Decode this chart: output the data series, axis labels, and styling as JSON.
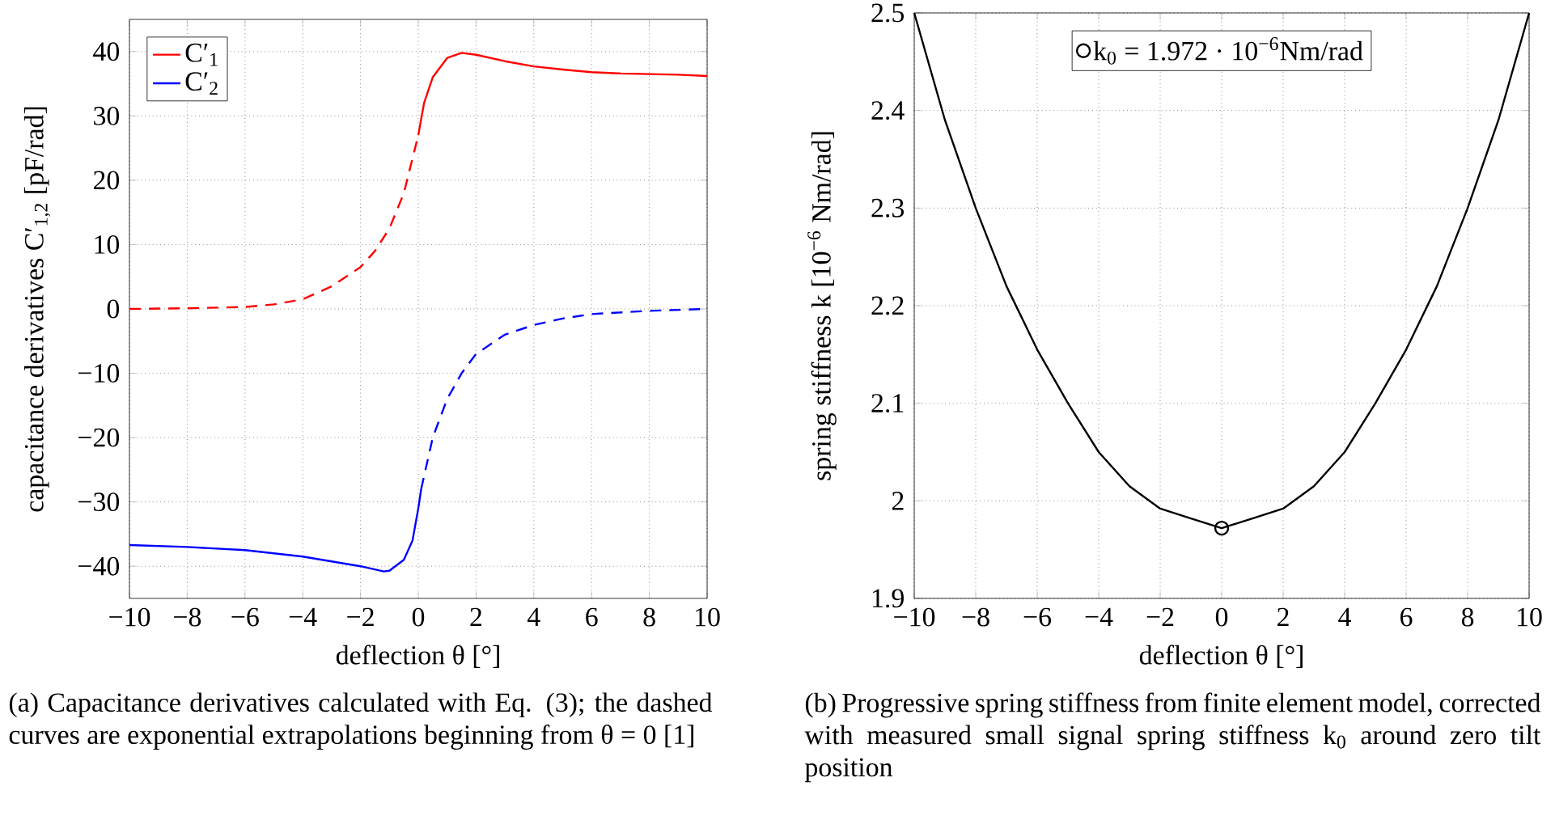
{
  "chart_data": [
    {
      "type": "line",
      "xlabel": "deflection θ [°]",
      "ylabel": "capacitance derivatives C′$_{1,2}$ [pF/rad]",
      "xlim": [
        -10,
        10
      ],
      "ylim": [
        -45,
        45
      ],
      "xticks": [
        {
          "value": -10,
          "label": "−10"
        },
        {
          "value": -8,
          "label": "−8"
        },
        {
          "value": -6,
          "label": "−6"
        },
        {
          "value": -4,
          "label": "−4"
        },
        {
          "value": -2,
          "label": "−2"
        },
        0,
        2,
        4,
        6,
        8,
        10
      ],
      "yticks": [
        {
          "value": -40,
          "label": "−40"
        },
        {
          "value": -30,
          "label": "−30"
        },
        {
          "value": -20,
          "label": "−20"
        },
        {
          "value": -10,
          "label": "−10"
        },
        0,
        10,
        20,
        30,
        40
      ],
      "grid": true,
      "legend": "top left",
      "series": [
        {
          "name": "C′$_{1}$",
          "color": "#ff0000",
          "line_style": "solid",
          "x": [
            0,
            0.2,
            0.5,
            1,
            1.5,
            2,
            3,
            4,
            5,
            6,
            7,
            8,
            9,
            10
          ],
          "values": [
            27,
            32,
            36,
            39,
            39.8,
            39.5,
            38.5,
            37.7,
            37.2,
            36.8,
            36.6,
            36.5,
            36.4,
            36.2
          ]
        },
        {
          "name": "C′$_{2}$",
          "color": "#0000ff",
          "line_style": "solid",
          "x": [
            -10,
            -8,
            -6,
            -4,
            -2,
            -1.2,
            -1,
            -0.5,
            -0.2,
            0,
            0.1
          ],
          "values": [
            -36.7,
            -37,
            -37.5,
            -38.5,
            -40,
            -40.8,
            -40.7,
            -39,
            -36,
            -31,
            -28
          ]
        },
        {
          "color": "#ff0000",
          "line_style": "dashed",
          "x": [
            -10,
            -8,
            -6,
            -5,
            -4,
            -3,
            -2,
            -1.5,
            -1,
            -0.5,
            0
          ],
          "values": [
            0,
            0.1,
            0.3,
            0.7,
            1.5,
            3.5,
            6.5,
            9,
            12.5,
            18,
            27
          ]
        },
        {
          "color": "#0000ff",
          "line_style": "dashed",
          "x": [
            0.1,
            0.5,
            1,
            1.5,
            2,
            3,
            4,
            5,
            6,
            8,
            10
          ],
          "values": [
            -28,
            -20,
            -14,
            -10,
            -7,
            -4,
            -2.5,
            -1.5,
            -0.8,
            -0.3,
            0
          ]
        }
      ],
      "annotations": [
        "(a) Capacitance derivatives calculated with Eq. (3); the dashed curves are exponential extrapolations beginning from θ = 0  [1]"
      ]
    },
    {
      "type": "line",
      "xlabel": "deflection θ [°]",
      "ylabel": "spring stiffness k [10$^{−6}$ Nm/rad]",
      "xlim": [
        -10,
        10
      ],
      "ylim": [
        1.9,
        2.5
      ],
      "xticks": [
        {
          "value": -10,
          "label": "−10"
        },
        {
          "value": -8,
          "label": "−8"
        },
        {
          "value": -6,
          "label": "−6"
        },
        {
          "value": -4,
          "label": "−4"
        },
        {
          "value": -2,
          "label": "−2"
        },
        0,
        2,
        4,
        6,
        8,
        10
      ],
      "yticks": [
        1.9,
        2,
        2.1,
        2.2,
        2.3,
        2.4,
        2.5
      ],
      "grid": true,
      "legend": "top",
      "series": [
        {
          "color": "#000000",
          "line_style": "solid",
          "x": [
            -10,
            -9,
            -8,
            -7,
            -6,
            -5,
            -4,
            -3,
            -2,
            -1,
            0,
            1,
            2,
            3,
            4,
            5,
            6,
            7,
            8,
            9,
            10
          ],
          "values": [
            2.5,
            2.39,
            2.3,
            2.22,
            2.155,
            2.1,
            2.05,
            2.015,
            1.992,
            1.982,
            1.972,
            1.982,
            1.992,
            2.015,
            2.05,
            2.1,
            2.155,
            2.22,
            2.3,
            2.39,
            2.5
          ]
        },
        {
          "type": "scatter",
          "name": "k$_{0}$ = 1.972 · 10$^{−6}$Nm/rad",
          "color": "#000000",
          "marker": "circle",
          "x": [
            0
          ],
          "values": [
            1.972
          ]
        }
      ],
      "annotations": [
        "(b) Progressive spring stiffness from finite element model, corrected with measured small signal spring stiffness k$_{0}$ around zero tilt position"
      ]
    }
  ]
}
